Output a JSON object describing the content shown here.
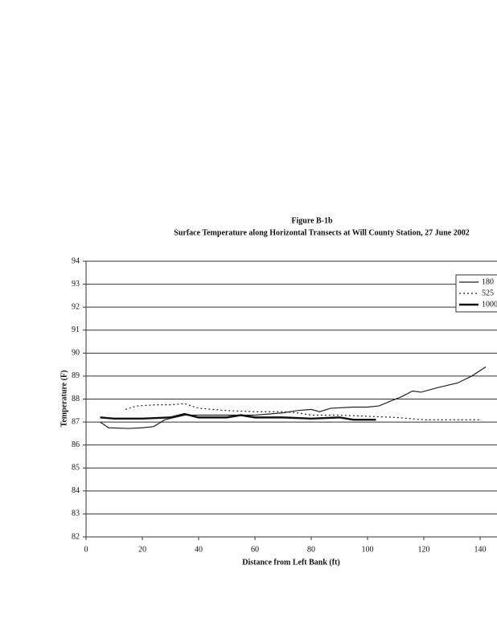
{
  "chart_data": {
    "type": "line",
    "title": "Figure B-1b",
    "subtitle": "Surface Temperature along Horizontal Transects at Will County Station, 27 June 2002",
    "x_label": "Distance from Left Bank (ft)",
    "y_label": "Temperature (F)",
    "xlim": [
      0,
      146
    ],
    "xticks": [
      0,
      20,
      40,
      60,
      80,
      100,
      120,
      140
    ],
    "ylim": [
      82,
      94
    ],
    "yticks": [
      82,
      83,
      84,
      85,
      86,
      87,
      88,
      89,
      90,
      91,
      92,
      93,
      94
    ],
    "grid": true,
    "legend": "upper right",
    "series": [
      {
        "name": "180",
        "color": "#222",
        "line_style": "solid",
        "line_width": 1.2,
        "x": [
          5,
          8,
          15,
          20,
          24,
          28,
          35,
          40,
          50,
          60,
          70,
          75,
          80,
          83,
          87,
          95,
          100,
          104,
          108,
          112,
          116,
          119,
          125,
          132,
          137,
          142
        ],
        "values": [
          87.0,
          86.75,
          86.72,
          86.75,
          86.8,
          87.1,
          87.3,
          87.3,
          87.3,
          87.3,
          87.4,
          87.5,
          87.55,
          87.45,
          87.6,
          87.65,
          87.65,
          87.7,
          87.9,
          88.1,
          88.35,
          88.3,
          88.5,
          88.7,
          89.0,
          89.4
        ]
      },
      {
        "name": "525",
        "color": "#222",
        "line_style": "dotted",
        "line_width": 1.2,
        "x": [
          14,
          18,
          25,
          30,
          35,
          40,
          50,
          60,
          70,
          75,
          80,
          90,
          100,
          110,
          120,
          130,
          140
        ],
        "values": [
          87.55,
          87.7,
          87.75,
          87.75,
          87.8,
          87.6,
          87.5,
          87.45,
          87.45,
          87.4,
          87.3,
          87.3,
          87.25,
          87.2,
          87.1,
          87.1,
          87.1
        ]
      },
      {
        "name": "1000",
        "color": "#111",
        "line_style": "solid",
        "line_width": 2.4,
        "x": [
          5,
          10,
          20,
          30,
          35,
          40,
          50,
          55,
          60,
          70,
          80,
          90,
          95,
          100,
          103
        ],
        "values": [
          87.2,
          87.15,
          87.15,
          87.2,
          87.35,
          87.2,
          87.2,
          87.3,
          87.2,
          87.2,
          87.15,
          87.2,
          87.1,
          87.1,
          87.1
        ]
      }
    ]
  }
}
